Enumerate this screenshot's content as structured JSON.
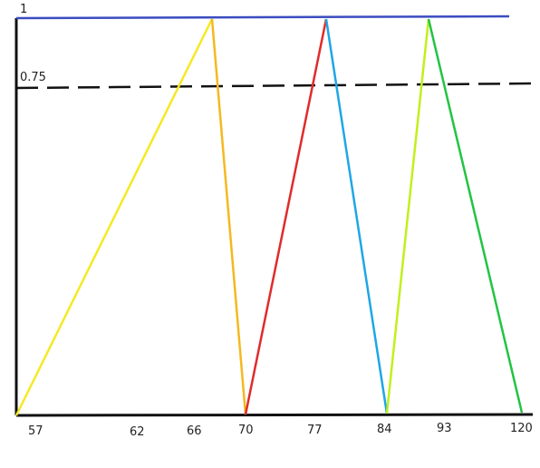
{
  "chart_data": {
    "type": "line",
    "y_labels": [
      "1",
      "0.75"
    ],
    "x_tick_labels": [
      "57",
      "62",
      "66",
      "70",
      "77",
      "84",
      "93",
      "120"
    ],
    "reference_lines": [
      {
        "y": 1,
        "style": "solid",
        "color": "#3b4cc0"
      },
      {
        "y": 0.75,
        "style": "dashed",
        "color": "#111111"
      }
    ],
    "segments": [
      {
        "from": [
          57,
          0
        ],
        "to": [
          68,
          1
        ],
        "color": "#f5e923"
      },
      {
        "from": [
          68,
          1
        ],
        "to": [
          70,
          0
        ],
        "color": "#f5b821"
      },
      {
        "from": [
          70,
          0
        ],
        "to": [
          77,
          1
        ],
        "color": "#e02b2b"
      },
      {
        "from": [
          77,
          1
        ],
        "to": [
          84,
          0
        ],
        "color": "#1fa6e6"
      },
      {
        "from": [
          84,
          0
        ],
        "to": [
          89,
          1
        ],
        "color": "#c0f01c"
      },
      {
        "from": [
          89,
          1
        ],
        "to": [
          120,
          0
        ],
        "color": "#22c442"
      }
    ],
    "grid": false
  }
}
